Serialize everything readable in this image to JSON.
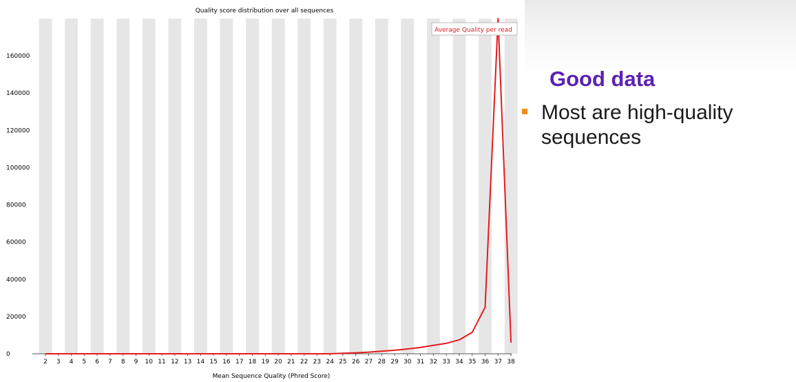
{
  "slide": {
    "heading": "Good data",
    "bullets": [
      "Most are high-quality sequences"
    ],
    "colors": {
      "heading": "#5b22b4",
      "bullet_marker": "#f28b1e"
    }
  },
  "chart_data": {
    "type": "line",
    "title": "Quality score distribution over all sequences",
    "xlabel": "Mean Sequence Quality (Phred Score)",
    "ylabel": "",
    "x": [
      2,
      3,
      4,
      5,
      6,
      7,
      8,
      9,
      10,
      11,
      12,
      13,
      14,
      15,
      16,
      17,
      18,
      19,
      20,
      21,
      22,
      23,
      24,
      25,
      26,
      27,
      28,
      29,
      30,
      31,
      32,
      33,
      34,
      35,
      36,
      37,
      38
    ],
    "series": [
      {
        "name": "Average Quality per read",
        "color": "#e41a1c",
        "values": [
          0,
          0,
          0,
          0,
          0,
          0,
          0,
          0,
          0,
          0,
          0,
          0,
          0,
          0,
          0,
          0,
          0,
          0,
          0,
          0,
          0,
          0,
          0,
          300,
          500,
          900,
          1400,
          1900,
          2600,
          3400,
          4500,
          5600,
          7500,
          11500,
          25000,
          180000,
          6000
        ]
      }
    ],
    "yticks": [
      0,
      20000,
      40000,
      60000,
      80000,
      100000,
      120000,
      140000,
      160000
    ],
    "ylim": [
      0,
      180000
    ],
    "legend": "top-right",
    "alternating_bands": true
  }
}
